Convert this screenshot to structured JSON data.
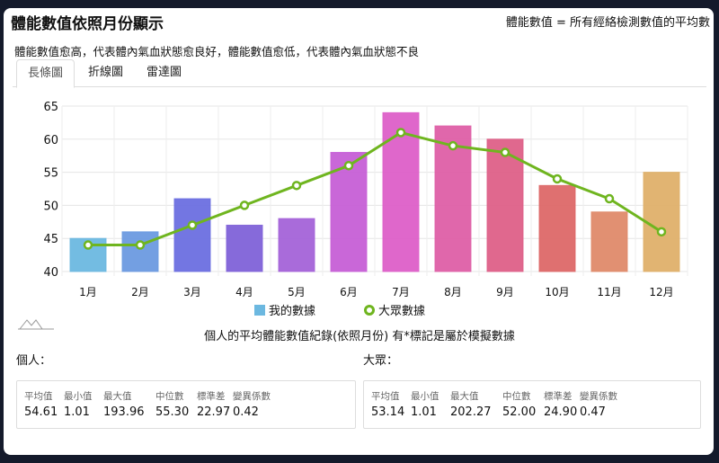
{
  "header": {
    "title": "體能數值依照月份顯示",
    "note": "體能數值 = 所有經絡檢測數值的平均數"
  },
  "description": "體能數值愈高，代表體內氣血狀態愈良好，體能數值愈低，代表體內氣血狀態不良",
  "tabs": [
    {
      "label": "長條圖",
      "active": true
    },
    {
      "label": "折線圖"
    },
    {
      "label": "雷達圖"
    }
  ],
  "chart_data": {
    "type": "bar",
    "categories": [
      "1月",
      "2月",
      "3月",
      "4月",
      "5月",
      "6月",
      "7月",
      "8月",
      "9月",
      "10月",
      "11月",
      "12月"
    ],
    "series": [
      {
        "name": "我的數據",
        "type": "bar",
        "values": [
          45,
          46,
          51,
          47,
          48,
          58,
          64,
          62,
          60,
          53,
          49,
          55
        ],
        "colors": [
          "#6cb8e0",
          "#6b9ae0",
          "#6b6fe0",
          "#8062d8",
          "#a463d8",
          "#c65fd6",
          "#dd5fc8",
          "#de5fa6",
          "#de6088",
          "#dd6868",
          "#df8a6a",
          "#dfb06a"
        ]
      },
      {
        "name": "大眾數據",
        "type": "line",
        "values": [
          44,
          44,
          47,
          50,
          53,
          56,
          61,
          59,
          58,
          54,
          51,
          46
        ],
        "color": "#6fb51f"
      }
    ],
    "yticks": [
      40,
      45,
      50,
      55,
      60,
      65
    ],
    "ylim": [
      40,
      65
    ],
    "grid": true,
    "legend": "bottom"
  },
  "summary_title": "個人的平均體能數值紀錄(依照月份) 有*標記是屬於模擬數據",
  "personal": {
    "label": "個人：",
    "stats": [
      {
        "l": "平均值",
        "v": "54.61"
      },
      {
        "l": "最小值",
        "v": "1.01"
      },
      {
        "l": "最大值",
        "v": "193.96"
      },
      {
        "l": "中位數",
        "v": "55.30"
      },
      {
        "l": "標準差",
        "v": "22.97"
      },
      {
        "l": "變異係數",
        "v": "0.42"
      }
    ]
  },
  "public": {
    "label": "大眾：",
    "stats": [
      {
        "l": "平均值",
        "v": "53.14"
      },
      {
        "l": "最小值",
        "v": "1.01"
      },
      {
        "l": "最大值",
        "v": "202.27"
      },
      {
        "l": "中位數",
        "v": "52.00"
      },
      {
        "l": "標準差",
        "v": "24.90"
      },
      {
        "l": "變異係數",
        "v": "0.47"
      }
    ]
  }
}
